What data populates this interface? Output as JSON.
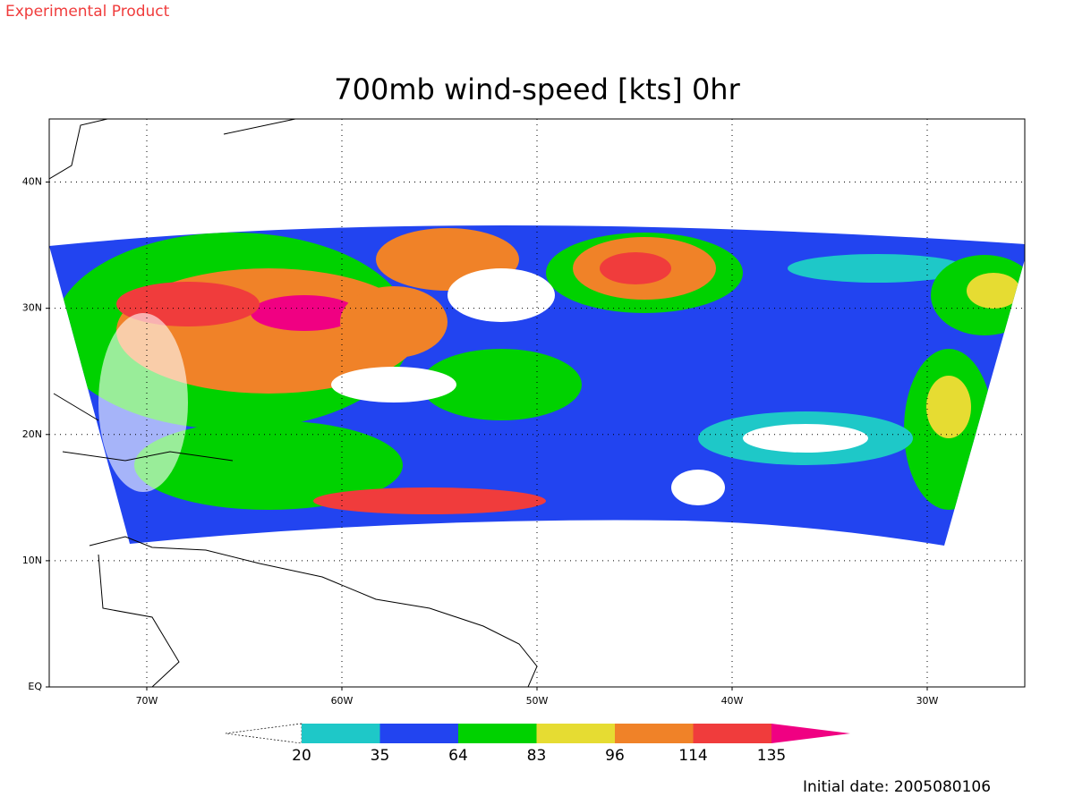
{
  "header": {
    "note": "Experimental Product"
  },
  "chart_data": {
    "type": "map",
    "title": "700mb wind-speed [kts] 0hr",
    "xlim": [
      -75,
      -25
    ],
    "ylim": [
      0,
      45
    ],
    "xticks": [
      {
        "value": -70,
        "label": "70W"
      },
      {
        "value": -60,
        "label": "60W"
      },
      {
        "value": -50,
        "label": "50W"
      },
      {
        "value": -40,
        "label": "40W"
      },
      {
        "value": -30,
        "label": "30W"
      }
    ],
    "yticks": [
      {
        "value": 0,
        "label": "EQ"
      },
      {
        "value": 10,
        "label": "10N"
      },
      {
        "value": 20,
        "label": "20N"
      },
      {
        "value": 30,
        "label": "30N"
      },
      {
        "value": 40,
        "label": "40N"
      }
    ],
    "grid": true,
    "colorbar": {
      "levels": [
        20,
        35,
        64,
        83,
        96,
        114,
        135
      ],
      "colors": [
        "#ffffff",
        "#1ec8c8",
        "#2244f0",
        "#00d200",
        "#e6dc32",
        "#f08228",
        "#f03c3c",
        "#f00082"
      ]
    },
    "footer": "Initial date: 2005080106"
  }
}
